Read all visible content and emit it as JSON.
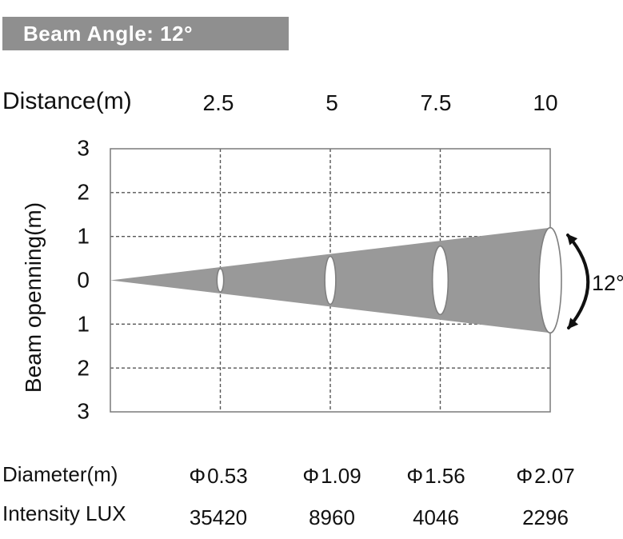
{
  "title_bar": {
    "label": "Beam Angle: 12°"
  },
  "colors": {
    "bar_bg": "#8f8f8f",
    "beam_fill": "#999999",
    "ellipse_stroke": "#7f7f7f",
    "grid": "#565656",
    "border": "#7a7a7a",
    "arrow": "#111111",
    "text": "#111111"
  },
  "header": {
    "label": "Distance(m)",
    "values": [
      "2.5",
      "5",
      "7.5",
      "10"
    ]
  },
  "chart_data": {
    "type": "area",
    "subtype": "light-beam-cone-diagram",
    "title": "Beam Angle: 12°",
    "xlabel": "Distance(m)",
    "ylabel": "Beam openning(m)",
    "beam_angle_deg": 12,
    "x_range": [
      0,
      10
    ],
    "y_range": [
      -3,
      3
    ],
    "x_gridlines": [
      2.5,
      5,
      7.5
    ],
    "y_gridlines": [
      -2,
      -1,
      1,
      2
    ],
    "y_tick_labels": [
      "3",
      "2",
      "1",
      "0",
      "1",
      "2",
      "3"
    ],
    "grid": "dashed",
    "apex": {
      "x": 0,
      "y": 0
    },
    "cone_end_half_opening_m": 1.2,
    "distances_m": [
      2.5,
      5,
      7.5,
      10
    ],
    "spot_diameters_m": [
      0.53,
      1.09,
      1.56,
      2.07
    ],
    "intensity_lux": [
      35420,
      8960,
      4046,
      2296
    ],
    "annotation": "12°",
    "legend": "none"
  },
  "table": {
    "diameter_label": "Diameter(m)",
    "phi": "Φ",
    "diameter_values": [
      "0.53",
      "1.09",
      "1.56",
      "2.07"
    ],
    "intensity_label": "Intensity LUX",
    "intensity_values": [
      "35420",
      "8960",
      "4046",
      "2296"
    ]
  }
}
